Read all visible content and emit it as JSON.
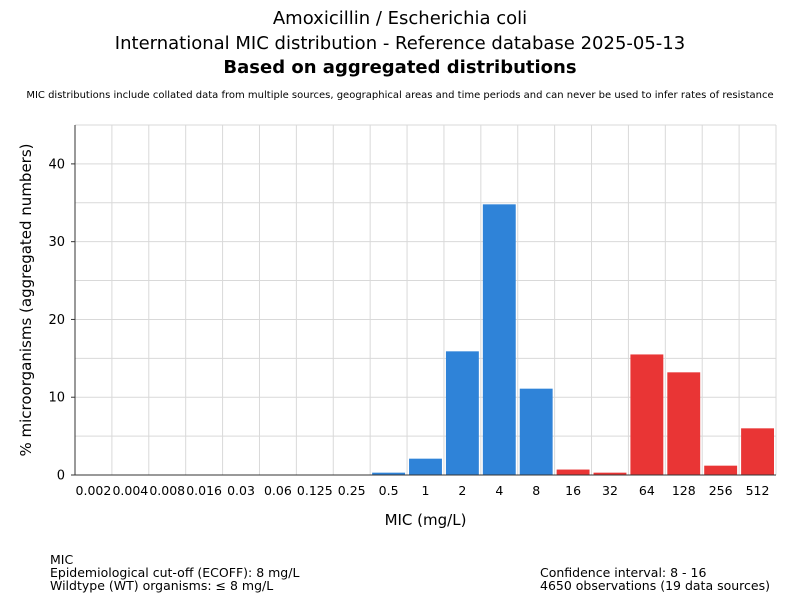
{
  "header": {
    "line1": "Amoxicillin / Escherichia coli",
    "line2": "International MIC distribution - Reference database 2025-05-13",
    "line3": "Based on aggregated distributions",
    "subtitle": "MIC distributions include collated data from multiple sources, geographical areas and time periods and can never be used to infer rates of resistance"
  },
  "chart_data": {
    "type": "bar",
    "title": "Amoxicillin / Escherichia coli",
    "xlabel": "MIC (mg/L)",
    "ylabel": "% microorganisms (aggregated numbers)",
    "ylim": [
      0,
      45
    ],
    "yticks": [
      0,
      10,
      20,
      30,
      40
    ],
    "grid": true,
    "categories": [
      "0.002",
      "0.004",
      "0.008",
      "0.016",
      "0.03",
      "0.06",
      "0.125",
      "0.25",
      "0.5",
      "1",
      "2",
      "4",
      "8",
      "16",
      "32",
      "64",
      "128",
      "256",
      "512"
    ],
    "values": [
      0,
      0,
      0,
      0,
      0,
      0,
      0,
      0,
      0.3,
      2.1,
      15.9,
      34.8,
      11.1,
      0.7,
      0.3,
      15.5,
      13.2,
      1.2,
      6.0
    ],
    "colors": [
      "blue",
      "blue",
      "blue",
      "blue",
      "blue",
      "blue",
      "blue",
      "blue",
      "blue",
      "blue",
      "blue",
      "blue",
      "blue",
      "red",
      "red",
      "red",
      "red",
      "red",
      "red"
    ],
    "blue_color": "#2f83d8",
    "red_color": "#e93535"
  },
  "footer": {
    "left": [
      "MIC",
      "Epidemiological cut-off (ECOFF): 8 mg/L",
      "Wildtype (WT) organisms: ≤ 8 mg/L"
    ],
    "right": [
      "Confidence interval: 8 - 16",
      "4650 observations (19 data sources)"
    ]
  }
}
